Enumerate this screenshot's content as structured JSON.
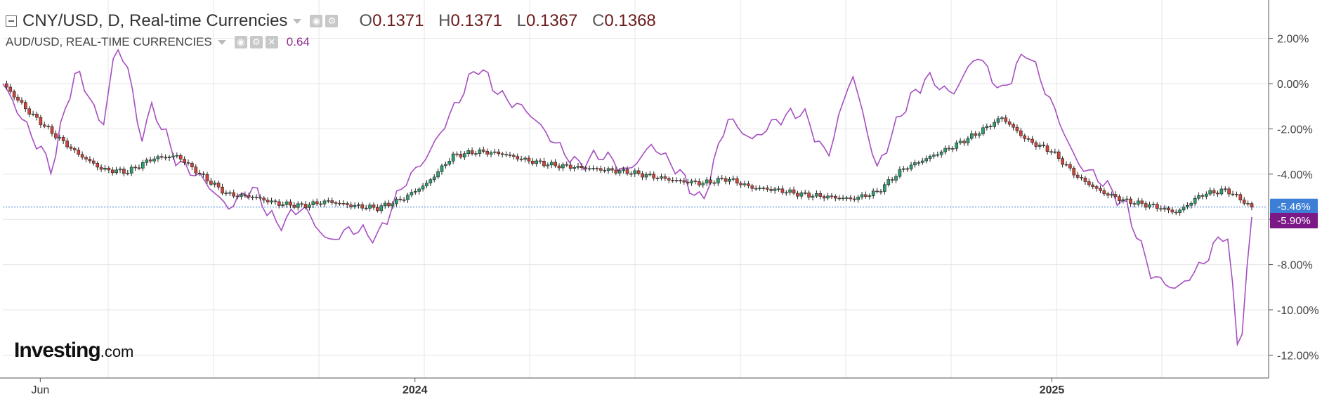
{
  "legend": {
    "main_title": "CNY/USD, D, Real-time Currencies",
    "ohlc": [
      {
        "key": "O",
        "value": "0.1371"
      },
      {
        "key": "H",
        "value": "0.1371"
      },
      {
        "key": "L",
        "value": "0.1367"
      },
      {
        "key": "C",
        "value": "0.1368"
      }
    ],
    "sub_title": "AUD/USD, REAL-TIME CURRENCIES",
    "sub_value": "0.64"
  },
  "logo": {
    "brand": "Investing",
    "domain": ".com"
  },
  "colors": {
    "up": "#2e9e6e",
    "down": "#d0453a",
    "compare": "#a64ec0",
    "current_badge": "#3d7fd6",
    "compare_badge": "#7b1a86",
    "grid": "#e6e6e6"
  },
  "chart_data": {
    "type": "line",
    "y_axis": {
      "unit": "percent",
      "ticks": [
        "2.00%",
        "0.00%",
        "-2.00%",
        "-4.00%",
        "-6.00%",
        "-8.00%",
        "-10.00%",
        "-12.00%"
      ],
      "tick_values": [
        2,
        0,
        -2,
        -4,
        -6,
        -8,
        -10,
        -12
      ],
      "range": [
        -12.5,
        3.5
      ]
    },
    "x_axis": {
      "labels": [
        "Jun",
        "2024",
        "2025"
      ],
      "label_positions": [
        0.03,
        0.33,
        0.84
      ]
    },
    "current_labels": [
      {
        "text": "-5.46%",
        "value": -5.46,
        "series": "CNY/USD"
      },
      {
        "text": "-5.90%",
        "value": -5.9,
        "series": "AUD/USD"
      }
    ],
    "series": [
      {
        "name": "CNY/USD",
        "style": "candlestick",
        "t": [
          0,
          0.02,
          0.04,
          0.06,
          0.08,
          0.1,
          0.12,
          0.14,
          0.16,
          0.18,
          0.2,
          0.22,
          0.24,
          0.26,
          0.28,
          0.3,
          0.32,
          0.34,
          0.36,
          0.38,
          0.4,
          0.42,
          0.44,
          0.46,
          0.48,
          0.5,
          0.52,
          0.54,
          0.56,
          0.58,
          0.6,
          0.62,
          0.64,
          0.66,
          0.68,
          0.7,
          0.72,
          0.74,
          0.76,
          0.78,
          0.8,
          0.82,
          0.84,
          0.86,
          0.88,
          0.9,
          0.92,
          0.94,
          0.96,
          0.98,
          1.0
        ],
        "values": [
          0.0,
          -1.2,
          -2.2,
          -3.1,
          -3.8,
          -3.9,
          -3.3,
          -3.2,
          -4.1,
          -4.9,
          -5.0,
          -5.3,
          -5.4,
          -5.2,
          -5.4,
          -5.5,
          -5.1,
          -4.4,
          -3.2,
          -3.0,
          -3.1,
          -3.4,
          -3.6,
          -3.7,
          -3.8,
          -3.9,
          -4.1,
          -4.3,
          -4.4,
          -4.2,
          -4.6,
          -4.7,
          -4.9,
          -5.0,
          -5.1,
          -4.8,
          -3.8,
          -3.3,
          -2.8,
          -2.2,
          -1.5,
          -2.5,
          -3.0,
          -4.1,
          -4.8,
          -5.2,
          -5.4,
          -5.7,
          -4.9,
          -4.7,
          -5.46
        ]
      },
      {
        "name": "AUD/USD",
        "style": "line",
        "t": [
          0,
          0.02,
          0.04,
          0.05,
          0.06,
          0.08,
          0.09,
          0.1,
          0.11,
          0.12,
          0.14,
          0.16,
          0.18,
          0.2,
          0.22,
          0.24,
          0.26,
          0.28,
          0.3,
          0.32,
          0.34,
          0.36,
          0.38,
          0.4,
          0.42,
          0.44,
          0.46,
          0.48,
          0.5,
          0.52,
          0.54,
          0.56,
          0.58,
          0.6,
          0.62,
          0.64,
          0.66,
          0.68,
          0.7,
          0.72,
          0.74,
          0.76,
          0.78,
          0.8,
          0.82,
          0.84,
          0.86,
          0.88,
          0.9,
          0.92,
          0.94,
          0.96,
          0.97,
          0.98,
          0.99,
          1.0
        ],
        "values": [
          0.0,
          -2.0,
          -3.8,
          -1.0,
          0.6,
          -2.0,
          1.6,
          0.8,
          -2.5,
          -1.0,
          -3.5,
          -4.2,
          -5.5,
          -4.6,
          -6.3,
          -5.4,
          -7.0,
          -6.4,
          -6.8,
          -4.5,
          -3.2,
          -1.2,
          0.8,
          -0.6,
          -1.2,
          -2.5,
          -3.6,
          -3.1,
          -3.9,
          -2.7,
          -3.8,
          -5.3,
          -1.5,
          -2.5,
          -1.6,
          -1.2,
          -3.3,
          0.5,
          -3.8,
          -1.2,
          0.3,
          -0.5,
          1.3,
          -0.4,
          1.5,
          -0.9,
          -3.5,
          -4.3,
          -5.5,
          -8.5,
          -9.1,
          -8.0,
          -7.2,
          -6.4,
          -12.3,
          -5.9
        ]
      }
    ]
  }
}
